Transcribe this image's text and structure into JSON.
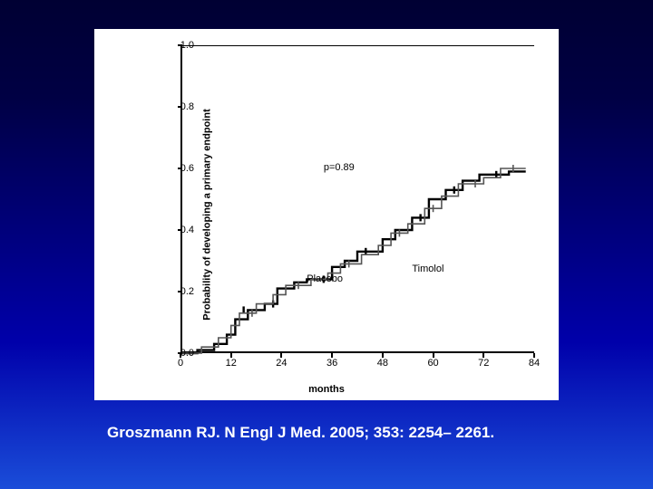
{
  "citation": "Groszmann RJ. N Engl J Med. 2005; 353: 2254– 2261.",
  "chart": {
    "type": "step-line (Kaplan-Meier style)",
    "ylabel": "Probability of developing a primary endpoint",
    "xlabel": "months",
    "xlim": [
      0,
      84
    ],
    "ylim": [
      0.0,
      1.0
    ],
    "xticks": [
      0,
      12,
      24,
      36,
      48,
      60,
      72,
      84
    ],
    "yticks": [
      0.0,
      0.2,
      0.4,
      0.6,
      0.8,
      1.0
    ],
    "background_color": "#ffffff",
    "p_value_label": "p=0.89",
    "p_value_pos": [
      34,
      0.62
    ],
    "series": [
      {
        "name": "Placebo",
        "label_pos": [
          30,
          0.26
        ],
        "color": "#000000",
        "line_width": 2.4,
        "points": [
          [
            0,
            0.0
          ],
          [
            4,
            0.0
          ],
          [
            4,
            0.01
          ],
          [
            8,
            0.01
          ],
          [
            8,
            0.03
          ],
          [
            11,
            0.03
          ],
          [
            11,
            0.06
          ],
          [
            13,
            0.06
          ],
          [
            13,
            0.11
          ],
          [
            16,
            0.11
          ],
          [
            16,
            0.14
          ],
          [
            20,
            0.14
          ],
          [
            20,
            0.16
          ],
          [
            23,
            0.16
          ],
          [
            23,
            0.21
          ],
          [
            27,
            0.21
          ],
          [
            27,
            0.23
          ],
          [
            30,
            0.23
          ],
          [
            30,
            0.24
          ],
          [
            36,
            0.24
          ],
          [
            36,
            0.28
          ],
          [
            39,
            0.28
          ],
          [
            39,
            0.3
          ],
          [
            42,
            0.3
          ],
          [
            42,
            0.33
          ],
          [
            48,
            0.33
          ],
          [
            48,
            0.37
          ],
          [
            51,
            0.37
          ],
          [
            51,
            0.4
          ],
          [
            55,
            0.4
          ],
          [
            55,
            0.44
          ],
          [
            59,
            0.44
          ],
          [
            59,
            0.5
          ],
          [
            63,
            0.5
          ],
          [
            63,
            0.53
          ],
          [
            67,
            0.53
          ],
          [
            67,
            0.56
          ],
          [
            71,
            0.56
          ],
          [
            71,
            0.58
          ],
          [
            78,
            0.58
          ],
          [
            78,
            0.59
          ],
          [
            82,
            0.59
          ]
        ],
        "tick_marks": [
          [
            15,
            0.14
          ],
          [
            22,
            0.16
          ],
          [
            34,
            0.24
          ],
          [
            44,
            0.33
          ],
          [
            57,
            0.44
          ],
          [
            65,
            0.53
          ],
          [
            75,
            0.58
          ]
        ]
      },
      {
        "name": "Timolol",
        "label_pos": [
          55,
          0.29
        ],
        "color": "#555555",
        "line_width": 1.6,
        "points": [
          [
            0,
            0.0
          ],
          [
            5,
            0.0
          ],
          [
            5,
            0.02
          ],
          [
            9,
            0.02
          ],
          [
            9,
            0.05
          ],
          [
            12,
            0.05
          ],
          [
            12,
            0.09
          ],
          [
            14,
            0.09
          ],
          [
            14,
            0.13
          ],
          [
            18,
            0.13
          ],
          [
            18,
            0.16
          ],
          [
            22,
            0.16
          ],
          [
            22,
            0.19
          ],
          [
            25,
            0.19
          ],
          [
            25,
            0.22
          ],
          [
            31,
            0.22
          ],
          [
            31,
            0.24
          ],
          [
            35,
            0.24
          ],
          [
            35,
            0.26
          ],
          [
            38,
            0.26
          ],
          [
            38,
            0.29
          ],
          [
            43,
            0.29
          ],
          [
            43,
            0.32
          ],
          [
            47,
            0.32
          ],
          [
            47,
            0.35
          ],
          [
            50,
            0.35
          ],
          [
            50,
            0.39
          ],
          [
            54,
            0.39
          ],
          [
            54,
            0.42
          ],
          [
            58,
            0.42
          ],
          [
            58,
            0.47
          ],
          [
            62,
            0.47
          ],
          [
            62,
            0.51
          ],
          [
            66,
            0.51
          ],
          [
            66,
            0.55
          ],
          [
            72,
            0.55
          ],
          [
            72,
            0.57
          ],
          [
            76,
            0.57
          ],
          [
            76,
            0.6
          ],
          [
            82,
            0.6
          ]
        ],
        "tick_marks": [
          [
            17,
            0.13
          ],
          [
            28,
            0.22
          ],
          [
            40,
            0.29
          ],
          [
            52,
            0.39
          ],
          [
            60,
            0.47
          ],
          [
            70,
            0.55
          ],
          [
            79,
            0.6
          ]
        ]
      }
    ]
  },
  "label_fontsize": 11,
  "tick_fontsize": 11
}
